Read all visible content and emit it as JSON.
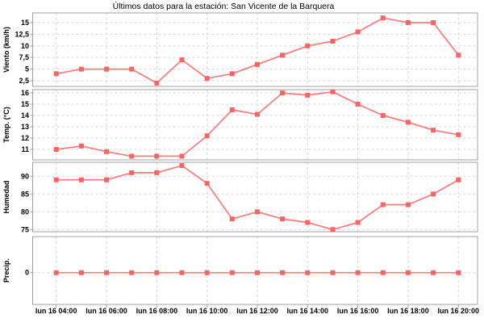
{
  "title": "Últimos datos para la estación: San Vicente de la Barquera",
  "colors": {
    "line": "#ff7a7a",
    "marker": "#f96565",
    "grid": "#d6d6d6",
    "axis_border": "#a0a0a0",
    "text": "#000000",
    "background": "#ffffff"
  },
  "x_axis": {
    "categories": [
      "lun 16 04:00",
      "lun 16 05:00",
      "lun 16 06:00",
      "lun 16 07:00",
      "lun 16 08:00",
      "lun 16 09:00",
      "lun 16 10:00",
      "lun 16 11:00",
      "lun 16 12:00",
      "lun 16 13:00",
      "lun 16 14:00",
      "lun 16 15:00",
      "lun 16 16:00",
      "lun 16 17:00",
      "lun 16 18:00",
      "lun 16 19:00",
      "lun 16 20:00"
    ],
    "tick_labels": [
      "lun 16 04:00",
      "lun 16 06:00",
      "lun 16 08:00",
      "lun 16 10:00",
      "lun 16 12:00",
      "lun 16 14:00",
      "lun 16 16:00",
      "lun 16 18:00",
      "lun 16 20:00"
    ]
  },
  "chart_data": [
    {
      "id": "viento",
      "type": "line",
      "ylabel": "Viento (km/h)",
      "ytick_values": [
        15,
        12.5,
        10,
        7.5,
        5,
        2.5
      ],
      "ytick_labels": [
        "15",
        "12,5",
        "10",
        "7,5",
        "5",
        "2,5"
      ],
      "ylim": [
        1.28,
        17.08
      ],
      "values": [
        4,
        5,
        5,
        5,
        2,
        7,
        3,
        4,
        6,
        8,
        10,
        11,
        13,
        16,
        15,
        15,
        8
      ]
    },
    {
      "id": "temp",
      "type": "line",
      "ylabel": "Temp. (°C)",
      "ytick_values": [
        16,
        15,
        14,
        13,
        12,
        11
      ],
      "ytick_labels": [
        "16",
        "15",
        "14",
        "13",
        "12",
        "11"
      ],
      "ylim": [
        10.07,
        16.29
      ],
      "values": [
        11,
        11.3,
        10.8,
        10.4,
        10.4,
        10.4,
        12.2,
        14.5,
        14.1,
        16,
        15.8,
        16.1,
        15,
        14,
        13.4,
        12.7,
        12.3
      ]
    },
    {
      "id": "humedad",
      "type": "line",
      "ylabel": "Humedad",
      "ytick_values": [
        90,
        85,
        80,
        75
      ],
      "ytick_labels": [
        "90",
        "85",
        "80",
        "75"
      ],
      "ylim": [
        74.39,
        93.93
      ],
      "values": [
        89,
        89,
        89,
        91,
        91,
        93,
        88,
        78,
        80,
        78,
        77,
        75,
        77,
        82,
        82,
        85,
        89
      ]
    },
    {
      "id": "precip",
      "type": "line",
      "ylabel": "Precip.",
      "ytick_values": [
        0
      ],
      "ytick_labels": [
        "0"
      ],
      "ylim": [
        -0.468,
        0.532
      ],
      "values": [
        0,
        0,
        0,
        0,
        0,
        0,
        0,
        0,
        0,
        0,
        0,
        0,
        0,
        0,
        0,
        0,
        0
      ]
    }
  ]
}
